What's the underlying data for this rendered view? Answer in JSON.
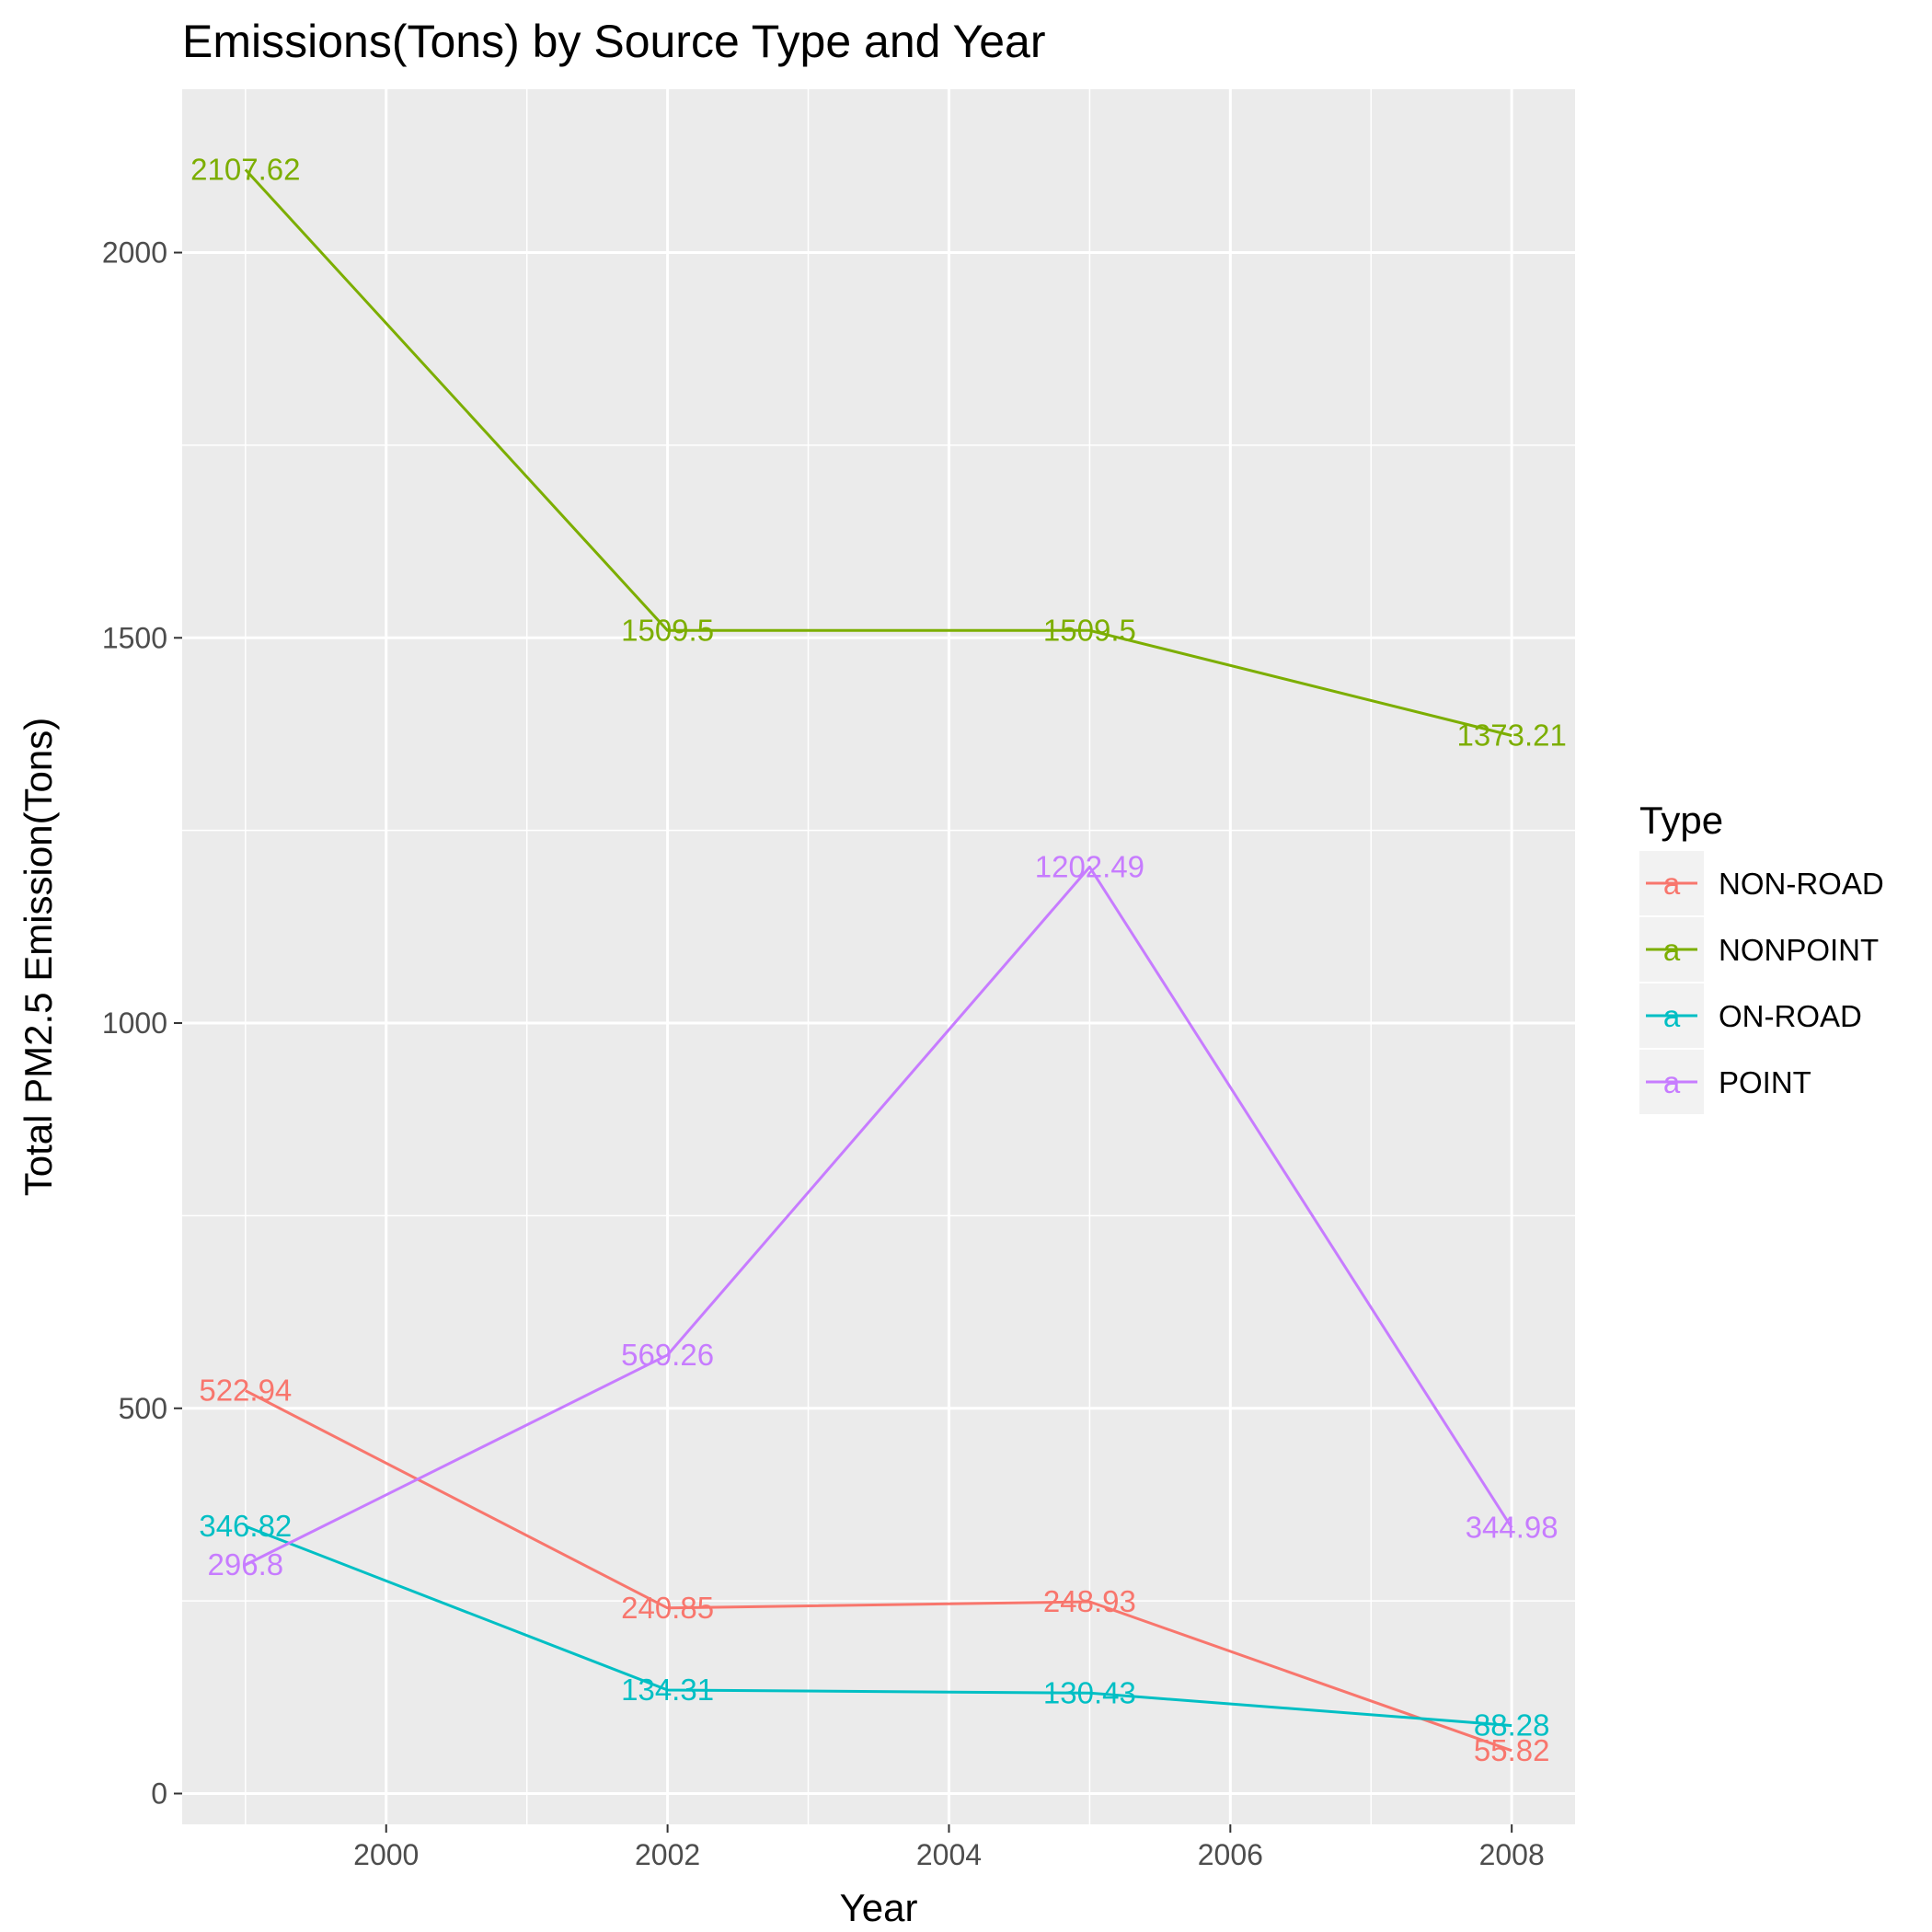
{
  "chart_data": {
    "type": "line",
    "title": "Emissions(Tons) by Source Type and Year",
    "xlabel": "Year",
    "ylabel": "Total PM2.5 Emission(Tons)",
    "x": [
      1999,
      2002,
      2005,
      2008
    ],
    "xlim": [
      1998.55,
      2008.45
    ],
    "ylim": [
      -40,
      2212
    ],
    "xticks": [
      2000,
      2002,
      2004,
      2006,
      2008
    ],
    "yticks": [
      0,
      500,
      1000,
      1500,
      2000
    ],
    "grid": true,
    "legend": {
      "title": "Type",
      "position": "right"
    },
    "series": [
      {
        "name": "NON-ROAD",
        "color": "#F8766D",
        "values": [
          522.94,
          240.85,
          248.93,
          55.82
        ],
        "labels": [
          "522.94",
          "240.85",
          "248.93",
          "55.82"
        ]
      },
      {
        "name": "NONPOINT",
        "color": "#7CAE00",
        "values": [
          2107.62,
          1509.5,
          1509.5,
          1373.21
        ],
        "labels": [
          "2107.62",
          "1509.5",
          "1509.5",
          "1373.21"
        ]
      },
      {
        "name": "ON-ROAD",
        "color": "#00BFC4",
        "values": [
          346.82,
          134.31,
          130.43,
          88.28
        ],
        "labels": [
          "346.82",
          "134.31",
          "130.43",
          "88.28"
        ]
      },
      {
        "name": "POINT",
        "color": "#C77CFF",
        "values": [
          296.8,
          569.26,
          1202.49,
          344.98
        ],
        "labels": [
          "296.8",
          "569.26",
          "1202.49",
          "344.98"
        ]
      }
    ]
  }
}
